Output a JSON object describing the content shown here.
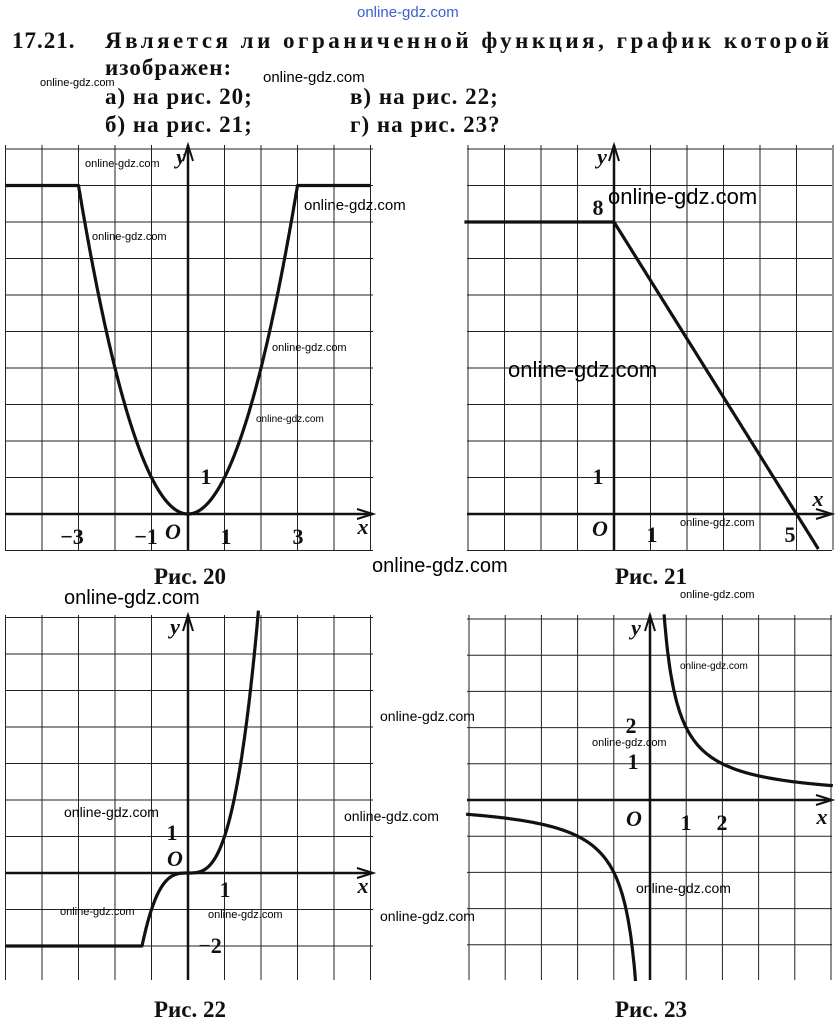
{
  "problem": {
    "number": "17.21.",
    "text": "Является ли ограниченной функция, график которой",
    "text_cont": "изображен:",
    "options": [
      "а) на рис. 20;",
      "б) на рис. 21;",
      "в) на рис. 22;",
      "г) на рис. 23?"
    ]
  },
  "figures": [
    {
      "caption": "Рис. 20",
      "x_label": "x",
      "y_label": "y",
      "origin": "O",
      "x_ticks": [
        "−3",
        "−1",
        "1",
        "3"
      ],
      "y_ticks": [
        "1"
      ]
    },
    {
      "caption": "Рис. 21",
      "x_label": "x",
      "y_label": "y",
      "origin": "O",
      "x_ticks": [
        "1",
        "5"
      ],
      "y_ticks": [
        "8",
        "1"
      ]
    },
    {
      "caption": "Рис. 22",
      "x_label": "x",
      "y_label": "y",
      "origin": "O",
      "x_ticks": [
        "1"
      ],
      "y_ticks": [
        "1",
        "−2"
      ]
    },
    {
      "caption": "Рис. 23",
      "x_label": "x",
      "y_label": "y",
      "origin": "O",
      "x_ticks": [
        "1",
        "2"
      ],
      "y_ticks": [
        "2",
        "1"
      ]
    }
  ],
  "watermarks": [
    "online-gdz.com",
    "online-gdz.com",
    "online-gdz.com",
    "online-gdz.com",
    "online-gdz.com",
    "online-gdz.com",
    "online-gdz.com",
    "online-gdz.com",
    "online-gdz.com",
    "online-gdz.com",
    "online-gdz.com",
    "online-gdz.com",
    "online-gdz.com",
    "online-gdz.com",
    "online-gdz.com",
    "online-gdz.com",
    "online-gdz.com",
    "online-gdz.com",
    "online-gdz.com",
    "online-gdz.com",
    "online-gdz.com",
    "online-gdz.com",
    "online-gdz.com"
  ]
}
